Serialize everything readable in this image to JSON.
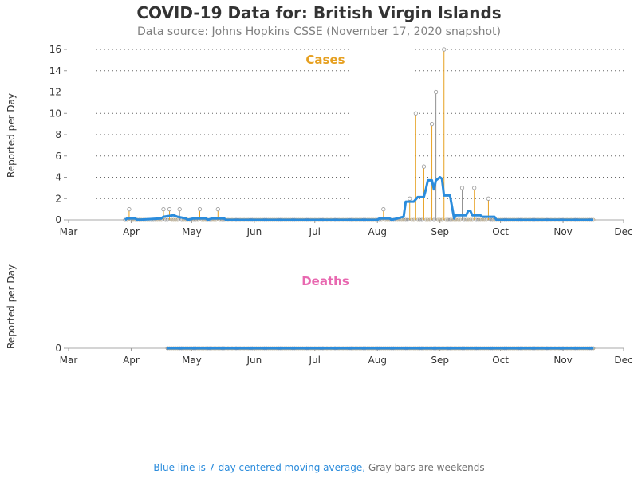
{
  "header": {
    "title": "COVID-19 Data for: British Virgin Islands",
    "subtitle": "Data source: Johns Hopkins CSSE (November 17, 2020 snapshot)"
  },
  "footnote": {
    "blue_text": "Blue line is 7-day centered moving average,",
    "gray_text": "Gray bars are weekends"
  },
  "colors": {
    "cases": "#e6a021",
    "deaths": "#e868b0",
    "moving_average": "#2b8cdc",
    "weekend": "#909090"
  },
  "chart_data": [
    {
      "type": "bar",
      "title": "Cases",
      "ylabel": "Reported per Day",
      "xlabel": "",
      "ylim": [
        0,
        16
      ],
      "yticks": [
        0,
        2,
        4,
        6,
        8,
        10,
        12,
        14,
        16
      ],
      "xlim": [
        "2020-03-01",
        "2020-12-01"
      ],
      "xticks": [
        "Mar",
        "Apr",
        "May",
        "Jun",
        "Jul",
        "Aug",
        "Sep",
        "Oct",
        "Nov",
        "Dec"
      ],
      "grid": "horizontal dotted",
      "date_range": [
        "2020-03-29",
        "2020-11-16"
      ],
      "points": [
        {
          "date": "2020-03-31",
          "value": 1
        },
        {
          "date": "2020-04-17",
          "value": 1
        },
        {
          "date": "2020-04-20",
          "value": 1
        },
        {
          "date": "2020-04-25",
          "value": 1
        },
        {
          "date": "2020-05-05",
          "value": 1
        },
        {
          "date": "2020-05-14",
          "value": 1
        },
        {
          "date": "2020-08-04",
          "value": 1
        },
        {
          "date": "2020-08-17",
          "value": 2
        },
        {
          "date": "2020-08-20",
          "value": 10
        },
        {
          "date": "2020-08-24",
          "value": 5
        },
        {
          "date": "2020-08-28",
          "value": 9
        },
        {
          "date": "2020-08-30",
          "value": 12
        },
        {
          "date": "2020-09-03",
          "value": 16
        },
        {
          "date": "2020-09-12",
          "value": 3
        },
        {
          "date": "2020-09-18",
          "value": 3
        },
        {
          "date": "2020-09-25",
          "value": 2
        }
      ],
      "moving_average": [
        {
          "date": "2020-03-29",
          "value": 0
        },
        {
          "date": "2020-03-30",
          "value": 0.14
        },
        {
          "date": "2020-04-03",
          "value": 0.14
        },
        {
          "date": "2020-04-04",
          "value": 0
        },
        {
          "date": "2020-04-16",
          "value": 0.14
        },
        {
          "date": "2020-04-17",
          "value": 0.29
        },
        {
          "date": "2020-04-22",
          "value": 0.43
        },
        {
          "date": "2020-04-24",
          "value": 0.29
        },
        {
          "date": "2020-04-28",
          "value": 0.14
        },
        {
          "date": "2020-04-29",
          "value": 0
        },
        {
          "date": "2020-05-02",
          "value": 0.14
        },
        {
          "date": "2020-05-08",
          "value": 0.14
        },
        {
          "date": "2020-05-09",
          "value": 0
        },
        {
          "date": "2020-05-11",
          "value": 0.14
        },
        {
          "date": "2020-05-17",
          "value": 0.14
        },
        {
          "date": "2020-05-18",
          "value": 0
        },
        {
          "date": "2020-08-01",
          "value": 0
        },
        {
          "date": "2020-08-02",
          "value": 0.14
        },
        {
          "date": "2020-08-07",
          "value": 0.14
        },
        {
          "date": "2020-08-08",
          "value": 0
        },
        {
          "date": "2020-08-14",
          "value": 0.29
        },
        {
          "date": "2020-08-15",
          "value": 1.71
        },
        {
          "date": "2020-08-19",
          "value": 1.71
        },
        {
          "date": "2020-08-21",
          "value": 2.14
        },
        {
          "date": "2020-08-24",
          "value": 2.14
        },
        {
          "date": "2020-08-25",
          "value": 2.86
        },
        {
          "date": "2020-08-26",
          "value": 3.71
        },
        {
          "date": "2020-08-28",
          "value": 3.71
        },
        {
          "date": "2020-08-29",
          "value": 2.86
        },
        {
          "date": "2020-08-30",
          "value": 3.71
        },
        {
          "date": "2020-09-01",
          "value": 4.0
        },
        {
          "date": "2020-09-02",
          "value": 3.86
        },
        {
          "date": "2020-09-03",
          "value": 2.29
        },
        {
          "date": "2020-09-06",
          "value": 2.29
        },
        {
          "date": "2020-09-08",
          "value": 0.14
        },
        {
          "date": "2020-09-09",
          "value": 0.43
        },
        {
          "date": "2020-09-14",
          "value": 0.43
        },
        {
          "date": "2020-09-15",
          "value": 0.86
        },
        {
          "date": "2020-09-16",
          "value": 0.86
        },
        {
          "date": "2020-09-17",
          "value": 0.43
        },
        {
          "date": "2020-09-21",
          "value": 0.43
        },
        {
          "date": "2020-09-22",
          "value": 0.29
        },
        {
          "date": "2020-09-28",
          "value": 0.29
        },
        {
          "date": "2020-09-29",
          "value": 0
        },
        {
          "date": "2020-11-16",
          "value": 0
        }
      ]
    },
    {
      "type": "bar",
      "title": "Deaths",
      "ylabel": "Reported per Day",
      "xlabel": "",
      "ylim": [
        0,
        1
      ],
      "yticks": [
        0
      ],
      "xlim": [
        "2020-03-01",
        "2020-12-01"
      ],
      "xticks": [
        "Mar",
        "Apr",
        "May",
        "Jun",
        "Jul",
        "Aug",
        "Sep",
        "Oct",
        "Nov",
        "Dec"
      ],
      "grid": "none",
      "date_range": [
        "2020-04-19",
        "2020-11-16"
      ],
      "points": [],
      "moving_average": [
        {
          "date": "2020-04-19",
          "value": 0
        },
        {
          "date": "2020-11-16",
          "value": 0
        }
      ]
    }
  ]
}
